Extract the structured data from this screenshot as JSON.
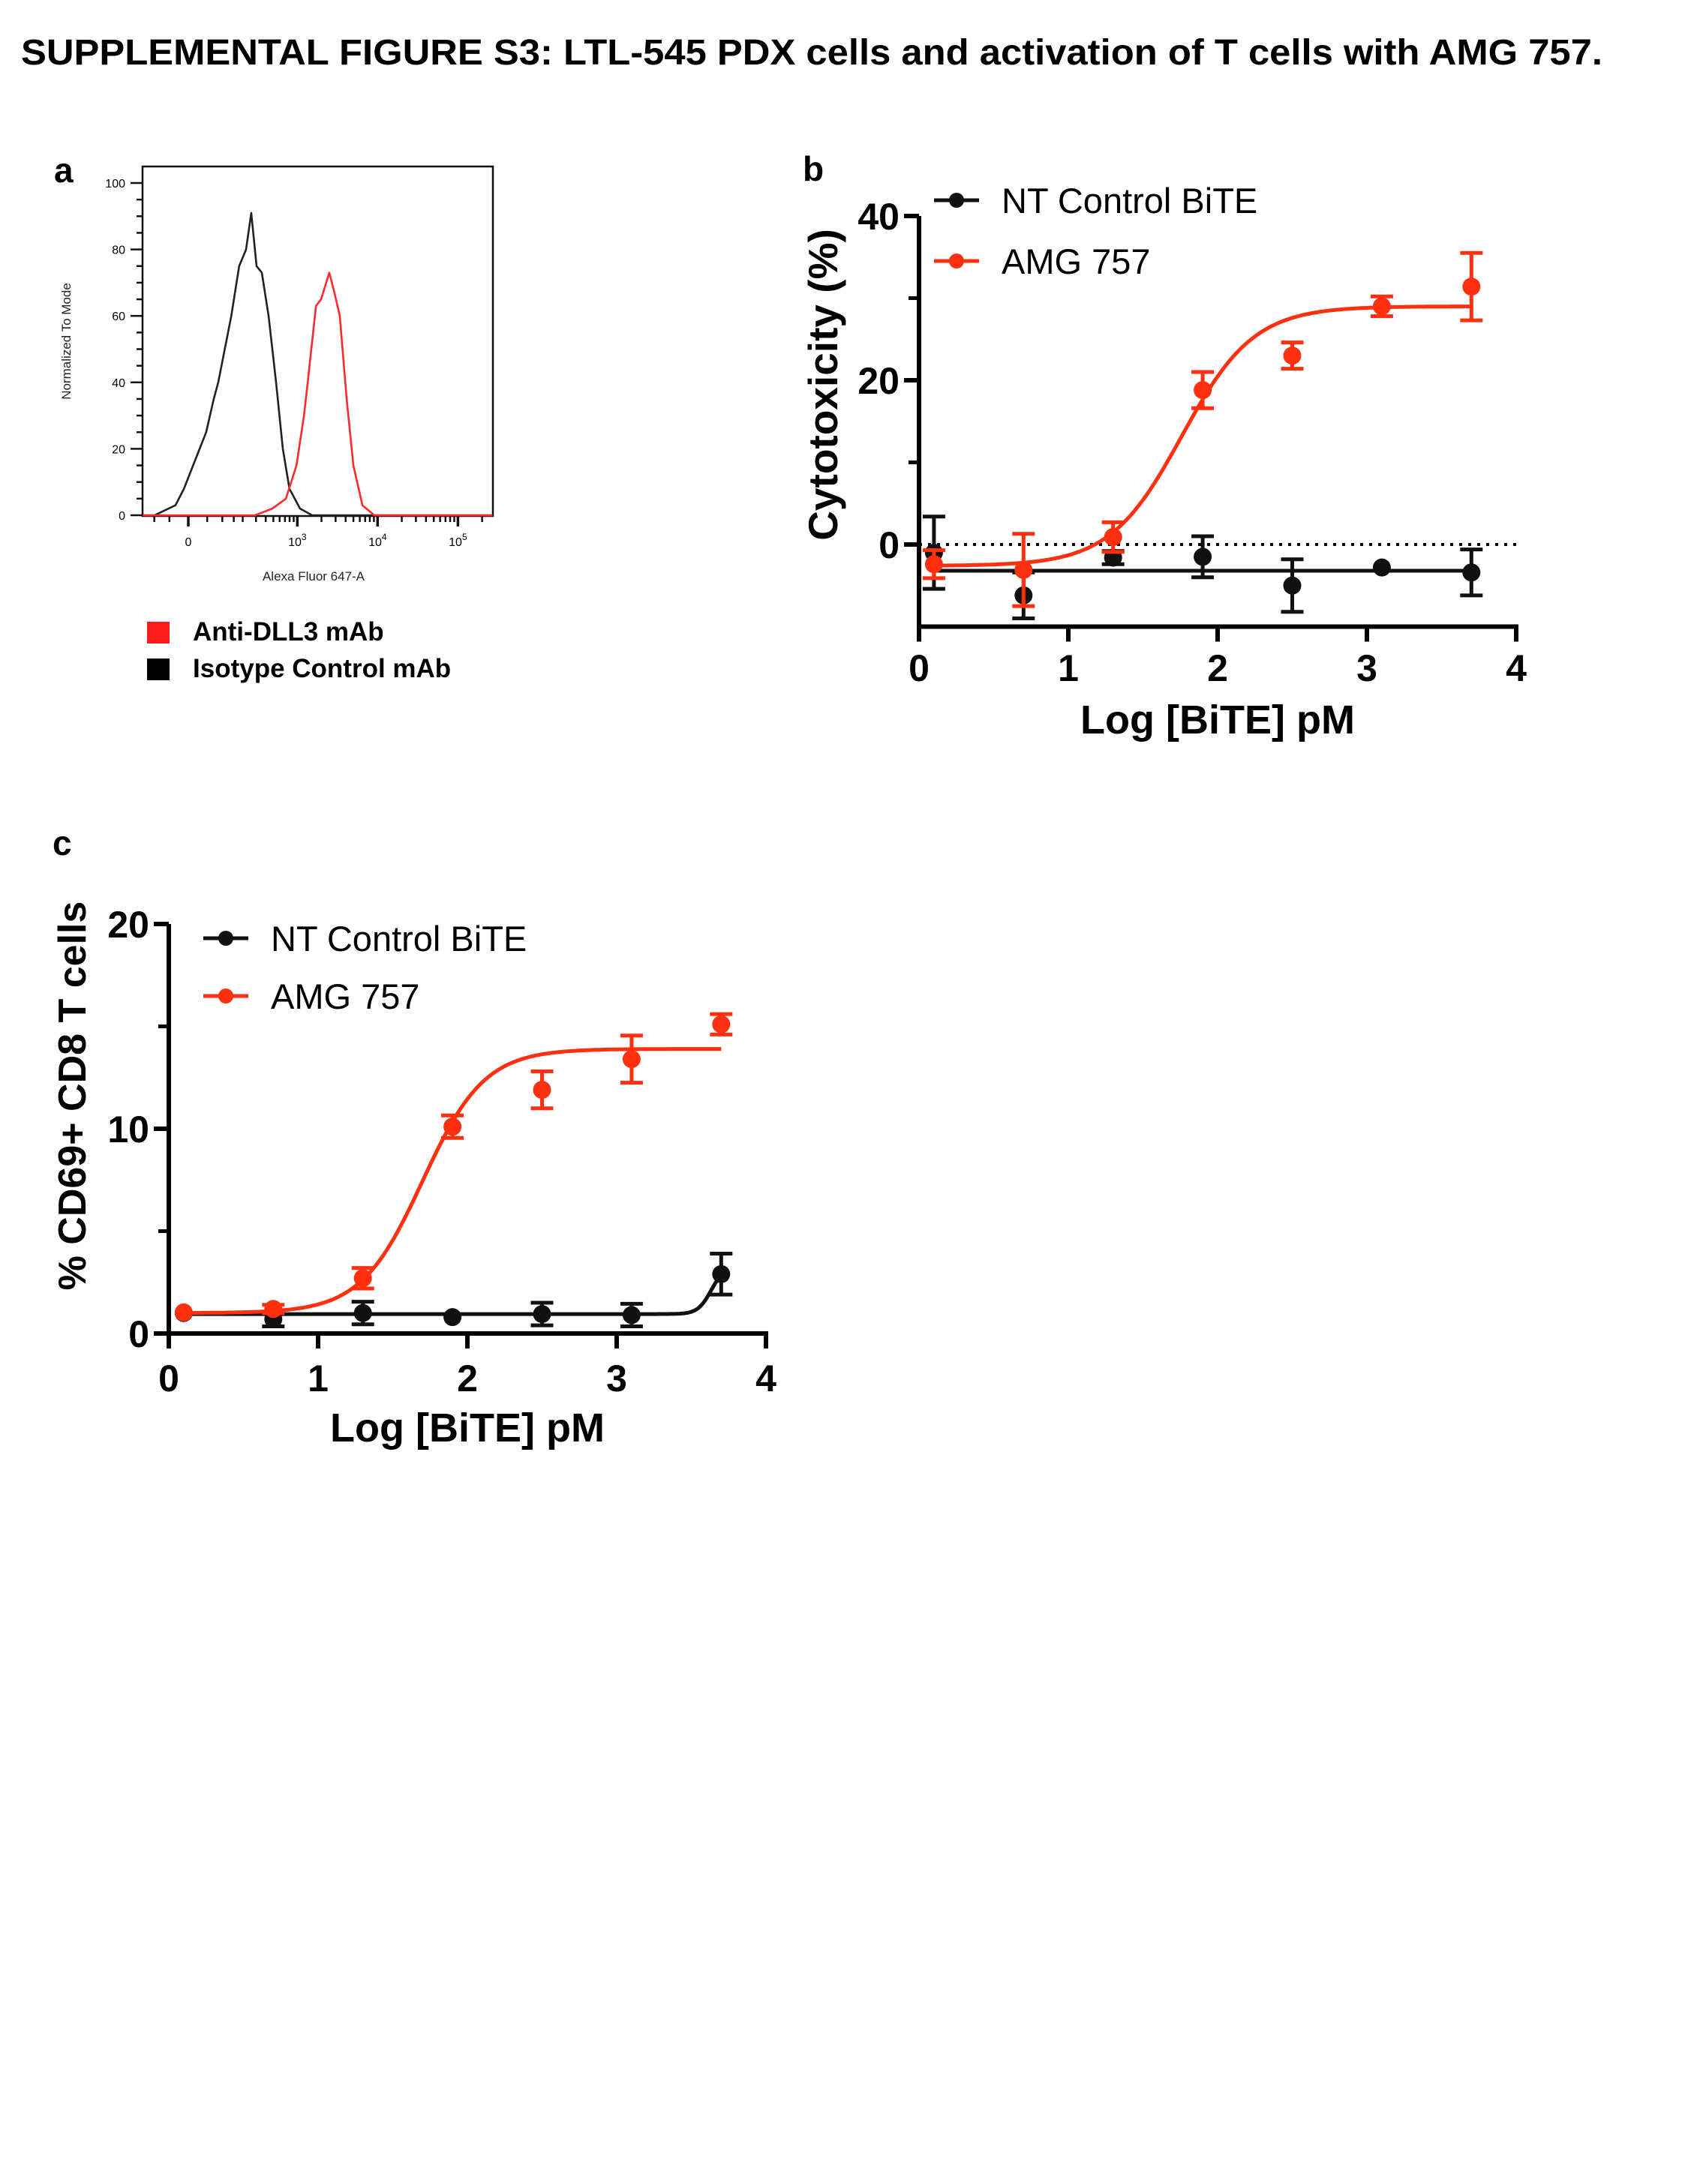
{
  "figure": {
    "title": "SUPPLEMENTAL FIGURE S3: LTL-545 PDX cells and activation of T cells with AMG 757.",
    "panel_labels": [
      "a",
      "b",
      "c"
    ]
  },
  "chart_data": [
    {
      "panel": "a",
      "type": "line",
      "subtype": "flow-cytometry-histogram",
      "xlabel": "Alexa Fluor 647-A",
      "ylabel": "Normalized To Mode",
      "x_scale": "biexponential",
      "xlim": [
        -150,
        270000
      ],
      "ylim": [
        0,
        100
      ],
      "yticks": [
        0,
        20,
        40,
        60,
        80,
        100
      ],
      "ytick_labels": [
        "0",
        "20",
        "40",
        "60",
        "80",
        "100"
      ],
      "xticks": [
        0,
        1000,
        10000,
        100000
      ],
      "xtick_labels": [
        "0",
        "10",
        "10",
        "10"
      ],
      "xtick_exponents": [
        "",
        "3",
        "4",
        "5"
      ],
      "grid": false,
      "legend_position": "bottom",
      "legend": [
        {
          "label": "Anti-DLL3 mAb",
          "color": "#ff1a1a"
        },
        {
          "label": "Isotype Control mAb",
          "color": "#000000"
        }
      ],
      "series": [
        {
          "name": "Isotype Control mAb",
          "color": "#222222",
          "x": [
            -150,
            -99,
            -33,
            -11,
            29,
            47,
            70,
            85,
            138,
            179,
            222,
            260,
            305,
            357,
            435,
            541,
            658,
            796,
            1080,
            1530,
            270000
          ],
          "y": [
            0,
            0,
            3,
            8,
            20,
            25,
            35,
            40,
            60,
            75,
            80,
            91,
            75,
            73,
            60,
            40,
            20,
            8,
            2,
            0,
            0
          ]
        },
        {
          "name": "Anti-DLL3 mAb",
          "color": "#ff2a2a",
          "x": [
            -150,
            292,
            486,
            720,
            975,
            1210,
            1320,
            1710,
            1980,
            2500,
            2900,
            3380,
            4120,
            4990,
            6470,
            9080,
            270000
          ],
          "y": [
            0,
            0,
            2,
            5,
            15,
            30,
            38,
            63,
            65,
            73,
            67,
            60,
            35,
            15,
            3,
            0,
            0
          ]
        }
      ]
    },
    {
      "panel": "b",
      "type": "scatter",
      "xlabel": "Log [BiTE] pM",
      "ylabel": "Cytotoxicity (%)",
      "xlim": [
        0,
        4
      ],
      "ylim": [
        -10,
        40
      ],
      "xticks": [
        0,
        1,
        2,
        3,
        4
      ],
      "xtick_labels": [
        "0",
        "1",
        "2",
        "3",
        "4"
      ],
      "yticks": [
        0,
        20,
        40
      ],
      "ytick_labels": [
        "0",
        "20",
        "40"
      ],
      "yminor": [
        10,
        30
      ],
      "reference_line_y": 0,
      "grid": false,
      "legend_position": "top-left",
      "series": [
        {
          "name": "NT Control BiTE",
          "color": "#111111",
          "x": [
            0.1,
            0.7,
            1.3,
            1.9,
            2.5,
            3.1,
            3.7
          ],
          "y": [
            -1.0,
            -6.2,
            -1.6,
            -1.5,
            -5.0,
            -2.8,
            -3.4
          ],
          "err": [
            4.4,
            2.8,
            0.8,
            2.5,
            3.2,
            0,
            2.8
          ],
          "fit": {
            "bottom": -3.2,
            "top": -3.2,
            "logEC50": 2,
            "hill": 1
          }
        },
        {
          "name": "AMG 757",
          "color": "#ff3010",
          "x": [
            0.1,
            0.7,
            1.3,
            1.9,
            2.5,
            3.1,
            3.7
          ],
          "y": [
            -2.4,
            -3.1,
            0.9,
            18.8,
            23.0,
            29.0,
            31.4
          ],
          "err": [
            1.7,
            4.4,
            1.8,
            2.2,
            1.6,
            1.2,
            4.1
          ],
          "fit": {
            "bottom": -2.6,
            "top": 29.0,
            "logEC50": 1.76,
            "hill": 1.8
          }
        }
      ]
    },
    {
      "panel": "c",
      "type": "scatter",
      "xlabel": "Log [BiTE] pM",
      "ylabel": "% CD69+ CD8 T cells",
      "xlim": [
        0,
        4
      ],
      "ylim": [
        0,
        20
      ],
      "xticks": [
        0,
        1,
        2,
        3,
        4
      ],
      "xtick_labels": [
        "0",
        "1",
        "2",
        "3",
        "4"
      ],
      "yticks": [
        0,
        10,
        20
      ],
      "ytick_labels": [
        "0",
        "10",
        "20"
      ],
      "yminor": [
        5,
        15
      ],
      "grid": false,
      "legend_position": "top-left",
      "series": [
        {
          "name": "NT Control BiTE",
          "color": "#111111",
          "x": [
            0.1,
            0.7,
            1.3,
            1.9,
            2.5,
            3.1,
            3.7
          ],
          "y": [
            1.0,
            0.7,
            1.0,
            0.8,
            0.95,
            0.9,
            2.9
          ],
          "err": [
            0,
            0.35,
            0.55,
            0,
            0.55,
            0.55,
            1.0
          ],
          "fit": {
            "bottom": 0.95,
            "top": 3.2,
            "logEC50": 3.63,
            "hill": 10
          }
        },
        {
          "name": "AMG 757",
          "color": "#ff3010",
          "x": [
            0.1,
            0.7,
            1.3,
            1.9,
            2.5,
            3.1,
            3.7
          ],
          "y": [
            1.03,
            1.2,
            2.7,
            10.1,
            11.9,
            13.4,
            15.1
          ],
          "err": [
            0,
            0.2,
            0.5,
            0.55,
            0.9,
            1.15,
            0.5
          ],
          "fit": {
            "bottom": 1.0,
            "top": 13.9,
            "logEC50": 1.7,
            "hill": 2.1
          }
        }
      ]
    }
  ]
}
